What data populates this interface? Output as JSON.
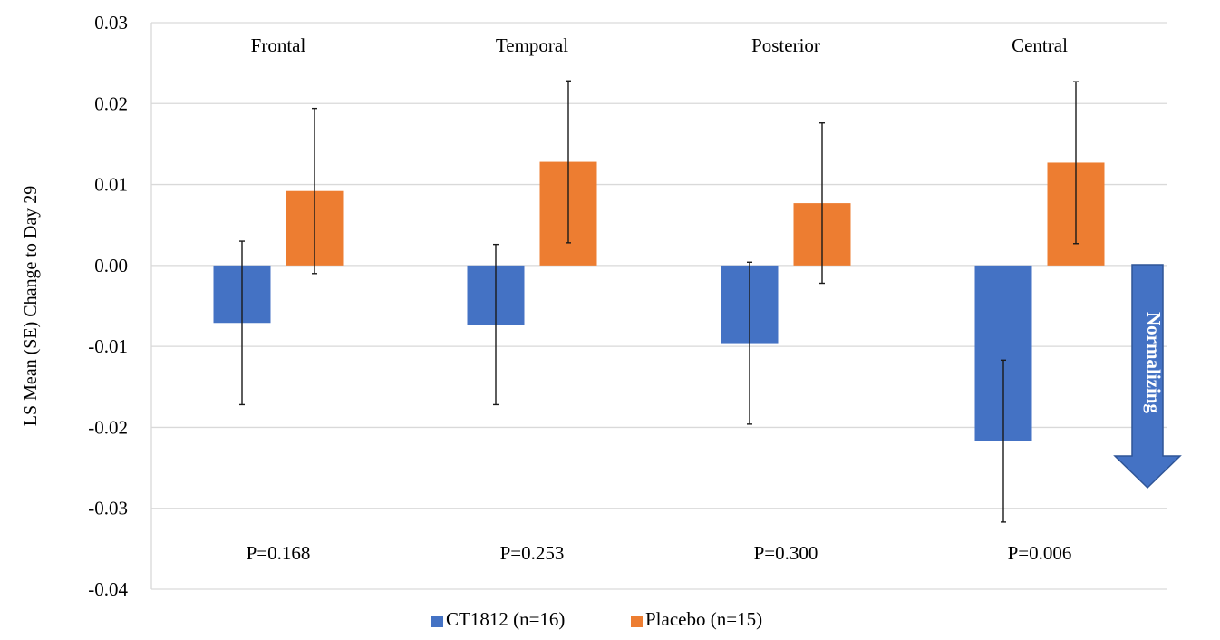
{
  "chart_data": {
    "type": "bar",
    "ylabel": "LS Mean (SE) Change to Day 29",
    "ylim": [
      -0.04,
      0.03
    ],
    "yticks": [
      0.03,
      0.02,
      0.01,
      0.0,
      -0.01,
      -0.02,
      -0.03,
      -0.04
    ],
    "ytick_labels": [
      "0.03",
      "0.02",
      "0.01",
      "0.00",
      "-0.01",
      "-0.02",
      "-0.03",
      "-0.04"
    ],
    "grid": true,
    "legend_position": "bottom",
    "categories": [
      "Frontal",
      "Temporal",
      "Posterior",
      "Central"
    ],
    "series": [
      {
        "name": "CT1812 (n=16)",
        "color": "#4472C4",
        "values": [
          -0.0071,
          -0.0073,
          -0.0096,
          -0.0217
        ],
        "se": [
          0.0101,
          0.0099,
          0.01,
          0.01
        ]
      },
      {
        "name": "Placebo (n=15)",
        "color": "#ED7D31",
        "values": [
          0.0092,
          0.0128,
          0.0077,
          0.0127
        ],
        "se": [
          0.0102,
          0.01,
          0.0099,
          0.01
        ]
      }
    ],
    "p_values": [
      "P=0.168",
      "P=0.253",
      "P=0.300",
      "P=0.006"
    ],
    "annotation": {
      "text": "Normalizing",
      "icon": "down-arrow",
      "color": "#4472C4"
    }
  }
}
